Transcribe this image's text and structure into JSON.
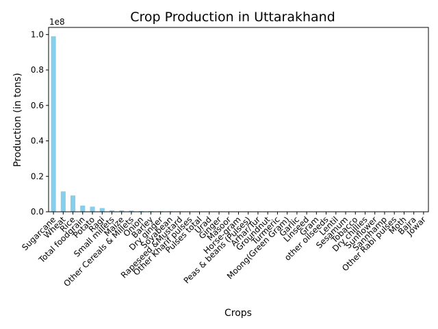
{
  "chart_data": {
    "type": "bar",
    "title": "Crop Production in Uttarakhand",
    "xlabel": "Crops",
    "ylabel": "Production (in tons)",
    "offset_text": "1e8",
    "ylim": [
      0,
      1.04
    ],
    "y_ticks": [
      0.0,
      0.2,
      0.4,
      0.6,
      0.8,
      1.0
    ],
    "y_tick_labels": [
      "0.0",
      "0.2",
      "0.4",
      "0.6",
      "0.8",
      "1.0"
    ],
    "bar_color": "#87ceeb",
    "grid": false,
    "categories": [
      "Sugarcane",
      "Wheat",
      "Rice",
      "Total foodgrain",
      "Potato",
      "Ragi",
      "Small millets",
      "Maize",
      "Other Cereals & Millets",
      "Onion",
      "Barley",
      "Dry ginger",
      "Soyabean",
      "Rapeseed &Mustard",
      "Other Kharif pulses",
      "Pulses total",
      "Urad",
      "Ginger",
      "Masoor",
      "Horse-gram",
      "Peas & beans (Pulses)",
      "Arhar/Tur",
      "Groundnut",
      "Turmeric",
      "Moong(Green Gram)",
      "Garlic",
      "Linseed",
      "Gram",
      "other oilseeds",
      "Lentil",
      "Sesamum",
      "Tobacco",
      "Dry chillies",
      "Sunflower",
      "Sannhamp",
      "Other  Rabi pulses",
      "Moth",
      "Bajra",
      "Jowar"
    ],
    "values": [
      0.99,
      0.115,
      0.092,
      0.035,
      0.029,
      0.021,
      0.008,
      0.0075,
      0.0065,
      0.004,
      0.0035,
      0.003,
      0.003,
      0.0025,
      0.002,
      0.002,
      0.0018,
      0.0015,
      0.0012,
      0.001,
      0.0008,
      0.0006,
      0.0005,
      0.0005,
      0.0004,
      0.0003,
      0.0003,
      0.0002,
      0.0002,
      0.0002,
      0.0001,
      0.0001,
      0.0001,
      0.0001,
      0.0001,
      5e-05,
      5e-05,
      3e-05,
      2e-05
    ]
  }
}
